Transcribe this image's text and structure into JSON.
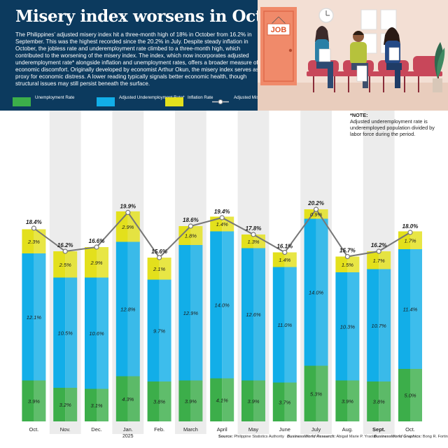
{
  "header": {
    "title": "Misery index worsens in October",
    "intro": "The Philippines’ adjusted misery index hit a three-month high of 18% in October from 16.2% in September. This was the highest recorded since the 20.2% in July. Despite steady inflation in October, the jobless rate and underemployment rate climbed to a three-month high, which contributed to the worsening of the misery index. The index, which now incorporates adjusted underemployment rate* alongside inflation and unemployment rates, offers a broader measure of economic discomfort. Originally developed by economist Arthur Okun, the misery index serves as a proxy for economic distress. A lower reading typically signals better economic health, though structural issues may still persist beneath the surface.",
    "job_sign": "JOB"
  },
  "legend": [
    {
      "key": "unemployment",
      "label": "Unemployment Rate"
    },
    {
      "key": "underemployment",
      "label": "Adjusted Underemployment Rate*"
    },
    {
      "key": "inflation",
      "label": "Inflation Rate"
    },
    {
      "key": "misery",
      "label": "Adjusted Misery Index"
    }
  ],
  "note": {
    "head": "*NOTE:",
    "text": "Adjusted underemployment rate is underemployed population divided by labor force during the period."
  },
  "source": {
    "source_label": "Source:",
    "source_text": "Philippine Statistics Authority",
    "research_label": "BusinessWorld Research:",
    "research_text": "Abigail Marie P. Yraola",
    "graphics_label": "BusinessWorld Graphics:",
    "graphics_text": "Bong R. Fortin"
  },
  "colors": {
    "unemployment": "#3cae4a",
    "underemployment": "#12aee8",
    "inflation": "#e3e01c",
    "misery_line": "#777777",
    "header_bg": "#0c3a5e",
    "column_shade": "#ececec"
  },
  "chart_data": {
    "type": "bar",
    "stacked": true,
    "categories": [
      "Oct.",
      "Nov.",
      "Dec.",
      "Jan.",
      "Feb.",
      "March",
      "April",
      "May",
      "June",
      "July",
      "Aug.",
      "Sept.",
      "Oct."
    ],
    "category_sublabels": [
      "",
      "",
      "",
      "2025",
      "",
      "",
      "",
      "",
      "",
      "",
      "",
      "",
      ""
    ],
    "series": [
      {
        "name": "Unemployment Rate",
        "key": "unemployment",
        "values": [
          3.9,
          3.2,
          3.1,
          4.3,
          3.8,
          3.9,
          4.1,
          3.9,
          3.7,
          5.3,
          3.9,
          3.8,
          5.0
        ]
      },
      {
        "name": "Adjusted Underemployment Rate*",
        "key": "underemployment",
        "values": [
          12.1,
          10.5,
          10.6,
          12.8,
          9.7,
          12.9,
          14.0,
          12.6,
          11.0,
          14.0,
          10.3,
          10.7,
          11.4
        ]
      },
      {
        "name": "Inflation Rate",
        "key": "inflation",
        "values": [
          2.3,
          2.5,
          2.9,
          2.9,
          2.1,
          1.8,
          1.4,
          1.3,
          1.4,
          0.9,
          1.5,
          1.7,
          1.7
        ]
      }
    ],
    "line": {
      "name": "Adjusted Misery Index",
      "values": [
        18.4,
        16.2,
        16.6,
        19.9,
        15.6,
        18.6,
        19.4,
        17.8,
        16.1,
        20.2,
        15.7,
        16.2,
        18.0
      ]
    },
    "value_suffix": "%",
    "ylim": [
      0,
      21
    ],
    "grid": false,
    "legend_position": "top-left"
  }
}
